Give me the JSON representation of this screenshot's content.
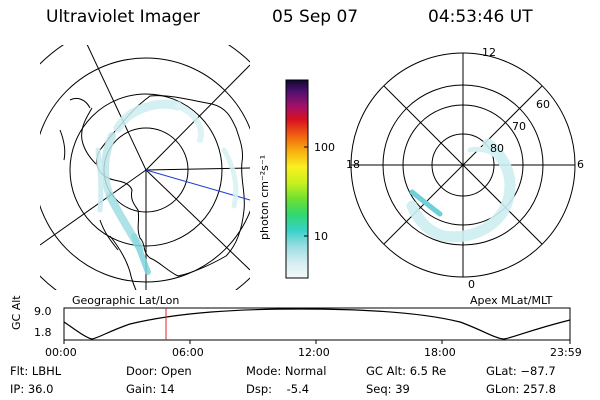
{
  "header": {
    "instrument": "Ultraviolet Imager",
    "date": "05 Sep 07",
    "time": "04:53:46 UT"
  },
  "colorbar": {
    "unit_label": "photon cm⁻²s⁻¹",
    "ticks": [
      "100",
      "10"
    ]
  },
  "polar_plot": {
    "hour_labels": [
      "12",
      "18",
      "6",
      "0"
    ],
    "lat_labels": [
      "60",
      "70",
      "80"
    ]
  },
  "map_labels": {
    "left": "Geographic Lat/Lon",
    "right": "Apex MLat/MLT"
  },
  "altitude_plot": {
    "ylabel": "GC Alt",
    "yticks": [
      "9.0",
      "1.8"
    ],
    "xticks": [
      "00:00",
      "06:00",
      "12:00",
      "18:00",
      "23:59"
    ]
  },
  "status": {
    "flt": "Flt: LBHL",
    "ip": "IP: 36.0",
    "door": "Door: Open",
    "gain": "Gain: 14",
    "mode": "Mode: Normal",
    "dsp": "Dsp:    -5.4",
    "gcalt": "GC Alt: 6.5 Re",
    "seq": "Seq: 39",
    "glat": "GLat: −87.7",
    "glon": "GLon: 257.8"
  },
  "colors": {
    "aurora": "#bfe8ea",
    "aurora_strong": "#6fd0d8",
    "marker": "#e02020",
    "meridian": "#2040d0"
  }
}
